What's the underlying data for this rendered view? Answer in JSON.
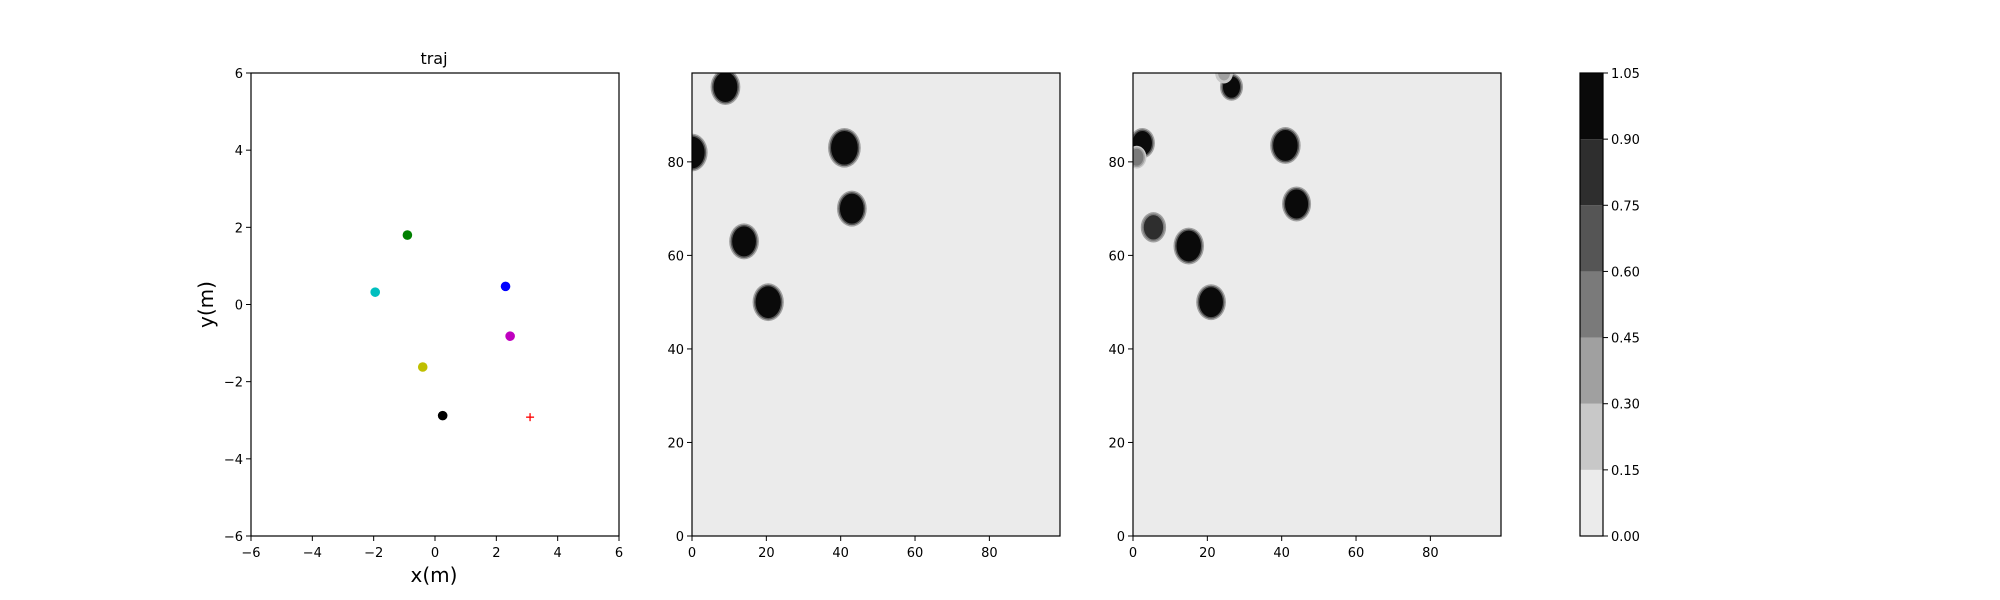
{
  "chart_data": [
    {
      "type": "scatter",
      "title": "traj",
      "xlabel": "x(m)",
      "ylabel": "y(m)",
      "xlim": [
        -6,
        6
      ],
      "ylim": [
        -6,
        6
      ],
      "xticks": [
        "−6",
        "−4",
        "−2",
        "0",
        "2",
        "4",
        "6"
      ],
      "yticks": [
        "−6",
        "−4",
        "−2",
        "0",
        "2",
        "4",
        "6"
      ],
      "xtick_values": [
        -6,
        -4,
        -2,
        0,
        2,
        4,
        6
      ],
      "ytick_values": [
        -6,
        -4,
        -2,
        0,
        2,
        4,
        6
      ],
      "grid": false,
      "points": [
        {
          "x": -0.9,
          "y": 1.8,
          "color": "#008000",
          "marker": "circle"
        },
        {
          "x": -1.95,
          "y": 0.32,
          "color": "#00bfbf",
          "marker": "circle"
        },
        {
          "x": 2.3,
          "y": 0.47,
          "color": "#0000ff",
          "marker": "circle"
        },
        {
          "x": 2.45,
          "y": -0.82,
          "color": "#bf00bf",
          "marker": "circle"
        },
        {
          "x": -0.4,
          "y": -1.62,
          "color": "#bfbf00",
          "marker": "circle"
        },
        {
          "x": 0.25,
          "y": -2.88,
          "color": "#000000",
          "marker": "circle"
        },
        {
          "x": 3.1,
          "y": -2.92,
          "color": "#ff0000",
          "marker": "plus"
        }
      ]
    },
    {
      "type": "heatmap",
      "title": "",
      "xlim": [
        0,
        99
      ],
      "ylim": [
        0,
        99
      ],
      "xticks": [
        "0",
        "20",
        "40",
        "60",
        "80"
      ],
      "yticks": [
        "0",
        "20",
        "40",
        "60",
        "80"
      ],
      "tick_values": [
        0,
        20,
        40,
        60,
        80
      ],
      "background_value": 0.05,
      "blobs": [
        {
          "x": 9,
          "y": 96,
          "r": 3.2,
          "value": 1.0
        },
        {
          "x": 0,
          "y": 82,
          "r": 3.4,
          "value": 1.0
        },
        {
          "x": 41,
          "y": 83,
          "r": 3.6,
          "value": 1.0
        },
        {
          "x": 43,
          "y": 70,
          "r": 3.2,
          "value": 1.0
        },
        {
          "x": 14,
          "y": 63,
          "r": 3.2,
          "value": 1.0
        },
        {
          "x": 20.5,
          "y": 50,
          "r": 3.4,
          "value": 1.0
        }
      ]
    },
    {
      "type": "heatmap",
      "title": "",
      "xlim": [
        0,
        99
      ],
      "ylim": [
        0,
        99
      ],
      "xticks": [
        "0",
        "20",
        "40",
        "60",
        "80"
      ],
      "yticks": [
        "0",
        "20",
        "40",
        "60",
        "80"
      ],
      "tick_values": [
        0,
        20,
        40,
        60,
        80
      ],
      "background_value": 0.05,
      "blobs": [
        {
          "x": 26.5,
          "y": 96,
          "r": 2.3,
          "value": 0.95
        },
        {
          "x": 24.5,
          "y": 99,
          "r": 1.6,
          "value": 0.4
        },
        {
          "x": 2.5,
          "y": 84,
          "r": 2.6,
          "value": 1.0
        },
        {
          "x": 1.0,
          "y": 81,
          "r": 1.8,
          "value": 0.5
        },
        {
          "x": 41,
          "y": 83.5,
          "r": 3.3,
          "value": 1.0
        },
        {
          "x": 44,
          "y": 71,
          "r": 3.1,
          "value": 1.0
        },
        {
          "x": 5.5,
          "y": 66,
          "r": 2.6,
          "value": 0.75
        },
        {
          "x": 15,
          "y": 62,
          "r": 3.3,
          "value": 1.0
        },
        {
          "x": 21,
          "y": 50,
          "r": 3.2,
          "value": 1.0
        }
      ]
    },
    {
      "type": "colorbar",
      "levels": [
        0.0,
        0.15,
        0.3,
        0.45,
        0.6,
        0.75,
        0.9,
        1.05
      ],
      "tick_labels": [
        "0.00",
        "0.15",
        "0.30",
        "0.45",
        "0.60",
        "0.75",
        "0.90",
        "1.05"
      ],
      "colors": [
        "#ebebeb",
        "#c8c8c8",
        "#a0a0a0",
        "#7a7a7a",
        "#555555",
        "#2e2e2e",
        "#0a0a0a"
      ]
    }
  ]
}
